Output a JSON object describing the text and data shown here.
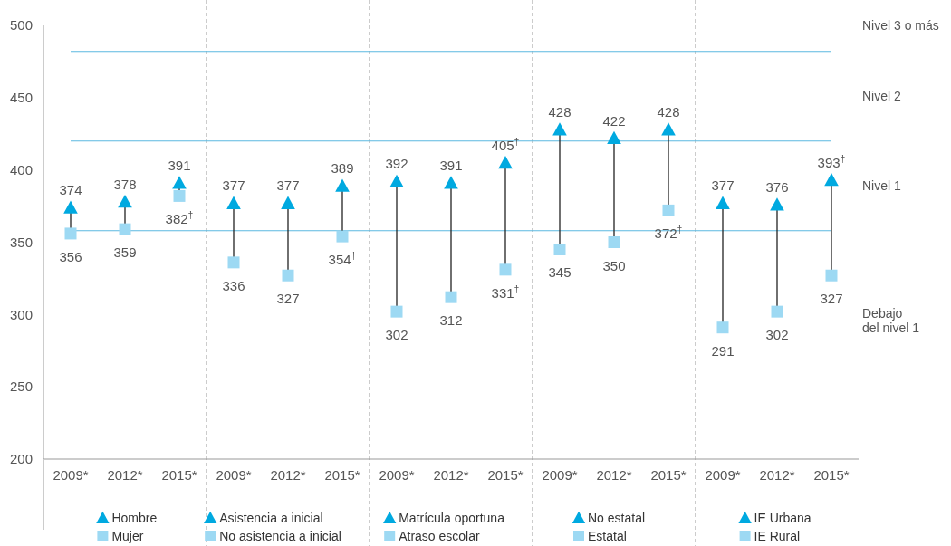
{
  "chart_data": {
    "type": "scatter",
    "categories": [
      "2009*",
      "2012*",
      "2015*",
      "2009*",
      "2012*",
      "2015*",
      "2009*",
      "2012*",
      "2015*",
      "2009*",
      "2012*",
      "2015*",
      "2009*",
      "2012*",
      "2015*"
    ],
    "series": [
      {
        "name": "Hombre",
        "color": "#00a9e0",
        "marker": "triangle",
        "values": [
          374,
          378,
          391,
          null,
          null,
          null,
          null,
          null,
          null,
          null,
          null,
          null,
          null,
          null,
          null
        ],
        "value_labels": [
          "374",
          "378",
          "391",
          null,
          null,
          null,
          null,
          null,
          null,
          null,
          null,
          null,
          null,
          null,
          null
        ]
      },
      {
        "name": "Mujer",
        "color": "#9dd9f3",
        "marker": "square",
        "values": [
          356,
          359,
          382,
          null,
          null,
          null,
          null,
          null,
          null,
          null,
          null,
          null,
          null,
          null,
          null
        ],
        "value_labels": [
          "356",
          "359",
          "382$^{†}$",
          null,
          null,
          null,
          null,
          null,
          null,
          null,
          null,
          null,
          null,
          null,
          null
        ]
      },
      {
        "name": "Asistencia a inicial",
        "color": "#00a9e0",
        "marker": "triangle",
        "values": [
          null,
          null,
          null,
          377,
          377,
          389,
          null,
          null,
          null,
          null,
          null,
          null,
          null,
          null,
          null
        ],
        "value_labels": [
          null,
          null,
          null,
          "377",
          "377",
          "389",
          null,
          null,
          null,
          null,
          null,
          null,
          null,
          null,
          null
        ]
      },
      {
        "name": "No asistencia a inicial",
        "color": "#9dd9f3",
        "marker": "square",
        "values": [
          null,
          null,
          null,
          336,
          327,
          354,
          null,
          null,
          null,
          null,
          null,
          null,
          null,
          null,
          null
        ],
        "value_labels": [
          null,
          null,
          null,
          "336",
          "327",
          "354$^{†}$",
          null,
          null,
          null,
          null,
          null,
          null,
          null,
          null,
          null
        ]
      },
      {
        "name": "Matrícula oportuna",
        "color": "#00a9e0",
        "marker": "triangle",
        "values": [
          null,
          null,
          null,
          null,
          null,
          null,
          392,
          391,
          405,
          null,
          null,
          null,
          null,
          null,
          null
        ],
        "value_labels": [
          null,
          null,
          null,
          null,
          null,
          null,
          "392",
          "391",
          "405$^{†}$",
          null,
          null,
          null,
          null,
          null,
          null
        ]
      },
      {
        "name": "Atraso escolar",
        "color": "#9dd9f3",
        "marker": "square",
        "values": [
          null,
          null,
          null,
          null,
          null,
          null,
          302,
          312,
          331,
          null,
          null,
          null,
          null,
          null,
          null
        ],
        "value_labels": [
          null,
          null,
          null,
          null,
          null,
          null,
          "302",
          "312",
          "331$^{†}$",
          null,
          null,
          null,
          null,
          null,
          null
        ]
      },
      {
        "name": "No estatal",
        "color": "#00a9e0",
        "marker": "triangle",
        "values": [
          null,
          null,
          null,
          null,
          null,
          null,
          null,
          null,
          null,
          428,
          422,
          428,
          null,
          null,
          null
        ],
        "value_labels": [
          null,
          null,
          null,
          null,
          null,
          null,
          null,
          null,
          null,
          "428",
          "422",
          "428",
          null,
          null,
          null
        ]
      },
      {
        "name": "Estatal",
        "color": "#9dd9f3",
        "marker": "square",
        "values": [
          null,
          null,
          null,
          null,
          null,
          null,
          null,
          null,
          null,
          345,
          350,
          372,
          null,
          null,
          null
        ],
        "value_labels": [
          null,
          null,
          null,
          null,
          null,
          null,
          null,
          null,
          null,
          "345",
          "350",
          "372$^{†}$",
          null,
          null,
          null
        ]
      },
      {
        "name": "IE Urbana",
        "color": "#00a9e0",
        "marker": "triangle",
        "values": [
          null,
          null,
          null,
          null,
          null,
          null,
          null,
          null,
          null,
          null,
          null,
          null,
          377,
          376,
          393
        ],
        "value_labels": [
          null,
          null,
          null,
          null,
          null,
          null,
          null,
          null,
          null,
          null,
          null,
          null,
          "377",
          "376",
          "393$^{†}$"
        ]
      },
      {
        "name": "IE Rural",
        "color": "#9dd9f3",
        "marker": "square",
        "values": [
          null,
          null,
          null,
          null,
          null,
          null,
          null,
          null,
          null,
          null,
          null,
          null,
          291,
          302,
          327
        ],
        "value_labels": [
          null,
          null,
          null,
          null,
          null,
          null,
          null,
          null,
          null,
          null,
          null,
          null,
          "291",
          "302",
          "327"
        ]
      }
    ],
    "ylim": [
      200,
      500
    ],
    "yticks": [
      200,
      250,
      300,
      350,
      400,
      450,
      500
    ],
    "grid": false,
    "legend": "bottom",
    "ref_lines": [
      {
        "axis": "y",
        "value": 358,
        "color": "#5bb8e0"
      },
      {
        "axis": "y",
        "value": 420,
        "color": "#5bb8e0"
      },
      {
        "axis": "y",
        "value": 482,
        "color": "#5bb8e0"
      }
    ],
    "annotations": [
      "Nivel 3 o más",
      "Nivel 2",
      "Nivel 1",
      "Debajo del nivel 1"
    ]
  }
}
